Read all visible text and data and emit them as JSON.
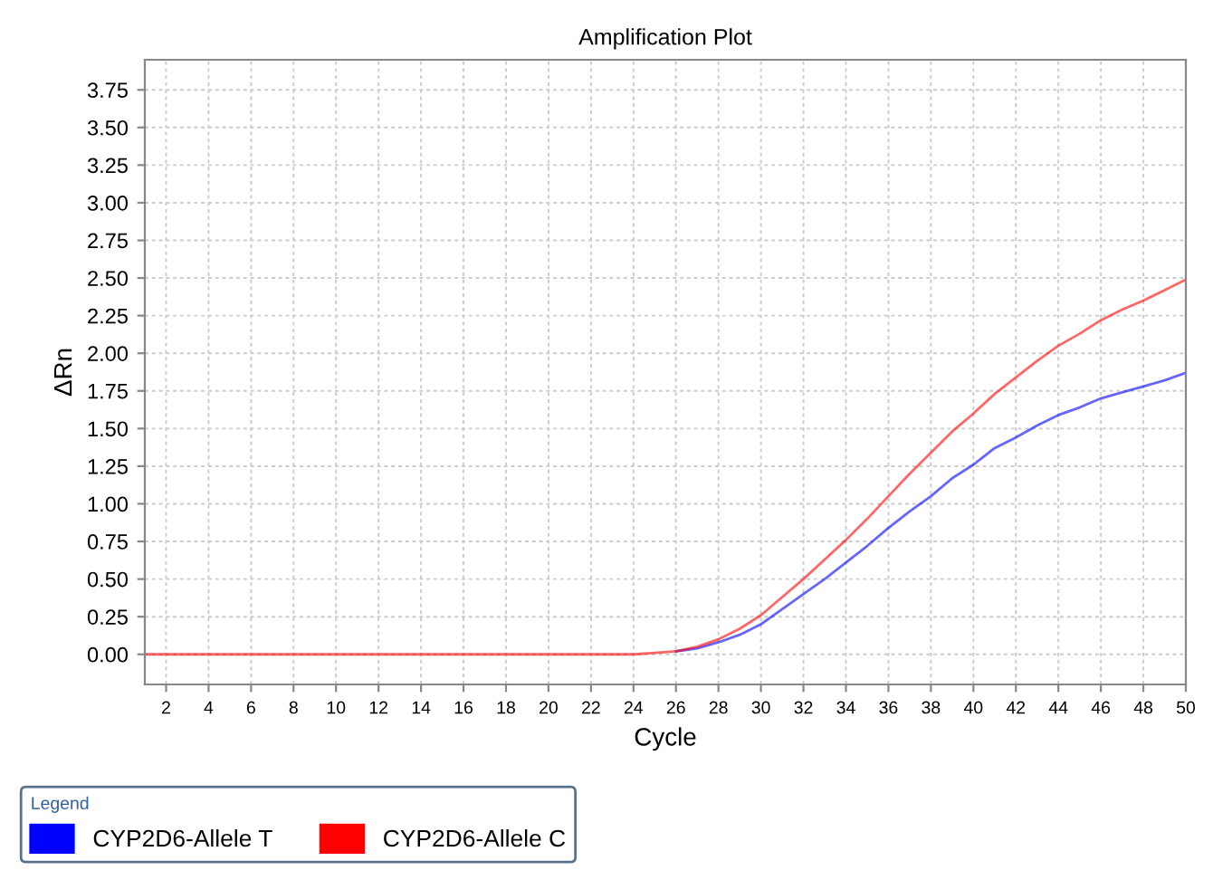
{
  "chart_data": {
    "type": "line",
    "title": "Amplification Plot",
    "xlabel": "Cycle",
    "ylabel": "ΔRn",
    "legend_title": "Legend",
    "x": [
      1,
      2,
      3,
      4,
      5,
      6,
      7,
      8,
      9,
      10,
      11,
      12,
      13,
      14,
      15,
      16,
      17,
      18,
      19,
      20,
      21,
      22,
      23,
      24,
      25,
      26,
      27,
      28,
      29,
      30,
      31,
      32,
      33,
      34,
      35,
      36,
      37,
      38,
      39,
      40,
      41,
      42,
      43,
      44,
      45,
      46,
      47,
      48,
      49,
      50
    ],
    "series": [
      {
        "name": "CYP2D6-Allele T",
        "color": "#0000ff",
        "values": [
          null,
          null,
          null,
          null,
          null,
          null,
          null,
          null,
          null,
          null,
          null,
          null,
          null,
          null,
          null,
          null,
          null,
          null,
          null,
          null,
          null,
          null,
          null,
          null,
          null,
          0.02,
          0.04,
          0.08,
          0.13,
          0.2,
          0.3,
          0.4,
          0.5,
          0.61,
          0.72,
          0.84,
          0.95,
          1.05,
          1.17,
          1.26,
          1.37,
          1.44,
          1.52,
          1.59,
          1.64,
          1.7,
          1.74,
          1.78,
          1.82,
          1.87
        ]
      },
      {
        "name": "CYP2D6-Allele C",
        "color": "#ff0000",
        "values": [
          0,
          0,
          0,
          0,
          0,
          0,
          0,
          0,
          0,
          0,
          0,
          0,
          0,
          0,
          0,
          0,
          0,
          0,
          0,
          0,
          0,
          0,
          0,
          0,
          0.01,
          0.02,
          0.05,
          0.1,
          0.17,
          0.26,
          0.38,
          0.5,
          0.63,
          0.76,
          0.9,
          1.05,
          1.2,
          1.34,
          1.48,
          1.6,
          1.73,
          1.84,
          1.95,
          2.05,
          2.13,
          2.22,
          2.29,
          2.35,
          2.42,
          2.49
        ]
      }
    ],
    "xlim": [
      1,
      50
    ],
    "xticks": [
      2,
      4,
      6,
      8,
      10,
      12,
      14,
      16,
      18,
      20,
      22,
      24,
      26,
      28,
      30,
      32,
      34,
      36,
      38,
      40,
      42,
      44,
      46,
      48,
      50
    ],
    "ylim": [
      -0.2,
      3.95
    ],
    "yticks": [
      {
        "value": 0,
        "label": "0.00"
      },
      {
        "value": 0.25,
        "label": "0.25"
      },
      {
        "value": 0.5,
        "label": "0.50"
      },
      {
        "value": 0.75,
        "label": "0.75"
      },
      {
        "value": 1,
        "label": "1.00"
      },
      {
        "value": 1.25,
        "label": "1.25"
      },
      {
        "value": 1.5,
        "label": "1.50"
      },
      {
        "value": 1.75,
        "label": "1.75"
      },
      {
        "value": 2,
        "label": "2.00"
      },
      {
        "value": 2.25,
        "label": "2.25"
      },
      {
        "value": 2.5,
        "label": "2.50"
      },
      {
        "value": 2.75,
        "label": "2.75"
      },
      {
        "value": 3,
        "label": "3.00"
      },
      {
        "value": 3.25,
        "label": "3.25"
      },
      {
        "value": 3.5,
        "label": "3.50"
      },
      {
        "value": 3.75,
        "label": "3.75"
      }
    ],
    "grid": true,
    "legend": "bottom",
    "marker": "none",
    "line_style": "solid"
  }
}
